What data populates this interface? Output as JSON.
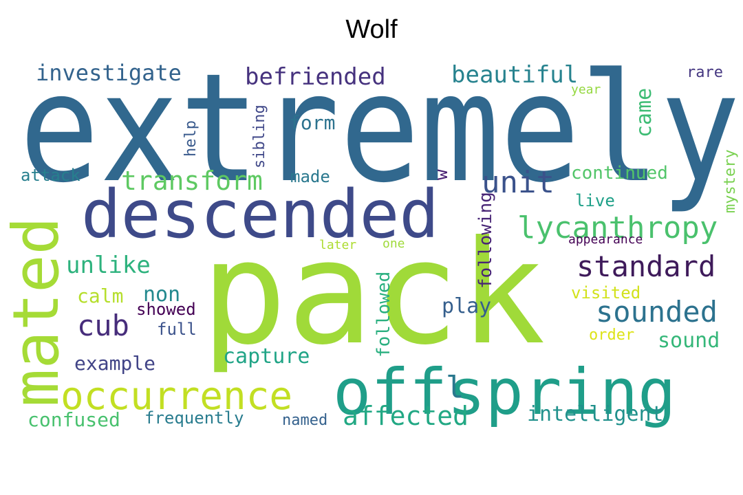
{
  "title": "Wolf",
  "words": [
    {
      "text": "extremely",
      "color": "#31688e"
    },
    {
      "text": "pack",
      "color": "#a0da39"
    },
    {
      "text": "descended",
      "color": "#3e4a89"
    },
    {
      "text": "offspring",
      "color": "#1f9e89"
    },
    {
      "text": "mated",
      "color": "#a5db36"
    },
    {
      "text": "occurrence",
      "color": "#c2df23"
    },
    {
      "text": "lycanthropy",
      "color": "#4ac16d"
    },
    {
      "text": "standard",
      "color": "#3e1a5a"
    },
    {
      "text": "sounded",
      "color": "#2c728e"
    },
    {
      "text": "affected",
      "color": "#22a884"
    },
    {
      "text": "unit",
      "color": "#3b528b"
    },
    {
      "text": "transform",
      "color": "#5ec962"
    },
    {
      "text": "cub",
      "color": "#472d7b"
    },
    {
      "text": "befriended",
      "color": "#46327e"
    },
    {
      "text": "beautiful",
      "color": "#26828e"
    },
    {
      "text": "investigate",
      "color": "#33638d"
    },
    {
      "text": "unlike",
      "color": "#2db27d"
    },
    {
      "text": "intelligent",
      "color": "#21918c"
    },
    {
      "text": "capture",
      "color": "#20a486"
    },
    {
      "text": "confused",
      "color": "#48c16e"
    },
    {
      "text": "example",
      "color": "#414487"
    },
    {
      "text": "sound",
      "color": "#35b779"
    },
    {
      "text": "frequently",
      "color": "#287c8e"
    },
    {
      "text": "play",
      "color": "#355f8d"
    },
    {
      "text": "non",
      "color": "#23898e"
    },
    {
      "text": "calm",
      "color": "#b5de2b"
    },
    {
      "text": "came",
      "color": "#3dbc74"
    },
    {
      "text": "form",
      "color": "#2c728e"
    },
    {
      "text": "following",
      "color": "#482576"
    },
    {
      "text": "followed",
      "color": "#29af7f"
    },
    {
      "text": "showed",
      "color": "#440154"
    },
    {
      "text": "full",
      "color": "#3b528b"
    },
    {
      "text": "named",
      "color": "#34618d"
    },
    {
      "text": "continued",
      "color": "#52c569"
    },
    {
      "text": "live",
      "color": "#1fa088"
    },
    {
      "text": "visited",
      "color": "#d2e21b"
    },
    {
      "text": "order",
      "color": "#dde318"
    },
    {
      "text": "mystery",
      "color": "#7ad151"
    },
    {
      "text": "attack",
      "color": "#277f8e"
    },
    {
      "text": "made",
      "color": "#2a788e"
    },
    {
      "text": "help",
      "color": "#38598c"
    },
    {
      "text": "sibling",
      "color": "#3f4788"
    },
    {
      "text": "rare",
      "color": "#453781"
    },
    {
      "text": "year",
      "color": "#95d840"
    },
    {
      "text": "appearance",
      "color": "#440154"
    },
    {
      "text": "later",
      "color": "#addc30"
    },
    {
      "text": "one",
      "color": "#9fda3a"
    },
    {
      "text": "w",
      "color": "#481f71"
    },
    {
      "text": "l",
      "color": "#2a788e"
    }
  ]
}
